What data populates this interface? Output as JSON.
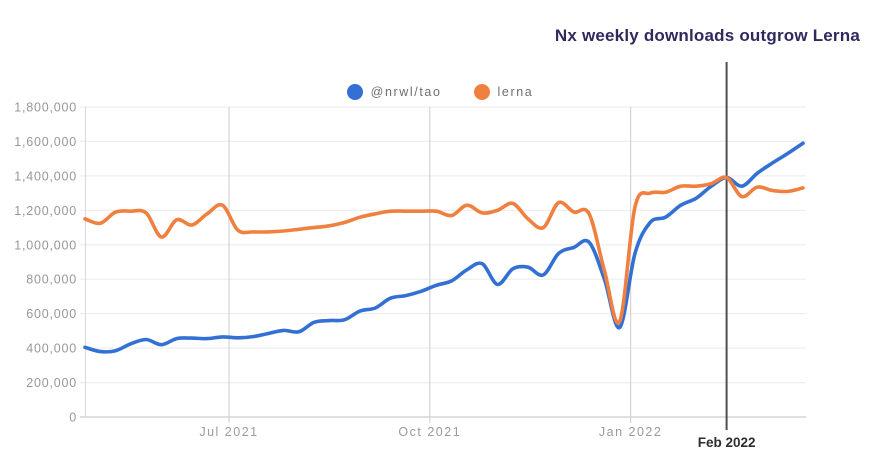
{
  "title": {
    "text": "Nx weekly downloads outgrow Lerna",
    "color": "#2f2a5e"
  },
  "legend": {
    "items": [
      {
        "label": "@nrwl/tao",
        "color": "#3370d4"
      },
      {
        "label": "lerna",
        "color": "#f0803f"
      }
    ]
  },
  "annotation": {
    "label": "Feb 2022",
    "date": "2022-02-14",
    "line_color": "#4f4f4f"
  },
  "chart_data": {
    "type": "line",
    "title": "Nx weekly downloads outgrow Lerna",
    "x_start": "2021-04-26",
    "x_end": "2022-03-21",
    "x_interval_days": 7,
    "x_ticks": [
      {
        "label": "Jul 2021",
        "date": "2021-07-01"
      },
      {
        "label": "Oct 2021",
        "date": "2021-10-01"
      },
      {
        "label": "Jan 2022",
        "date": "2022-01-01"
      }
    ],
    "y_min": 0,
    "y_max": 1800000,
    "y_step": 200000,
    "grid": true,
    "legend_position": "top-center",
    "series": [
      {
        "name": "@nrwl/tao",
        "color": "#3370d4",
        "values": [
          405000,
          380000,
          385000,
          425000,
          450000,
          420000,
          455000,
          458000,
          455000,
          465000,
          460000,
          467000,
          485000,
          503000,
          495000,
          550000,
          560000,
          565000,
          615000,
          633000,
          690000,
          705000,
          730000,
          765000,
          790000,
          855000,
          890000,
          770000,
          860000,
          870000,
          825000,
          950000,
          985000,
          1015000,
          800000,
          520000,
          950000,
          1130000,
          1160000,
          1230000,
          1270000,
          1340000,
          1390000,
          1340000,
          1415000,
          1475000,
          1530000,
          1590000
        ]
      },
      {
        "name": "lerna",
        "color": "#f0803f",
        "values": [
          1150000,
          1125000,
          1190000,
          1195000,
          1185000,
          1045000,
          1145000,
          1115000,
          1180000,
          1230000,
          1085000,
          1075000,
          1075000,
          1080000,
          1090000,
          1100000,
          1110000,
          1130000,
          1160000,
          1180000,
          1195000,
          1195000,
          1195000,
          1195000,
          1170000,
          1230000,
          1185000,
          1200000,
          1240000,
          1150000,
          1100000,
          1245000,
          1190000,
          1180000,
          850000,
          555000,
          1220000,
          1300000,
          1305000,
          1340000,
          1340000,
          1355000,
          1390000,
          1280000,
          1335000,
          1315000,
          1310000,
          1330000
        ]
      }
    ]
  }
}
